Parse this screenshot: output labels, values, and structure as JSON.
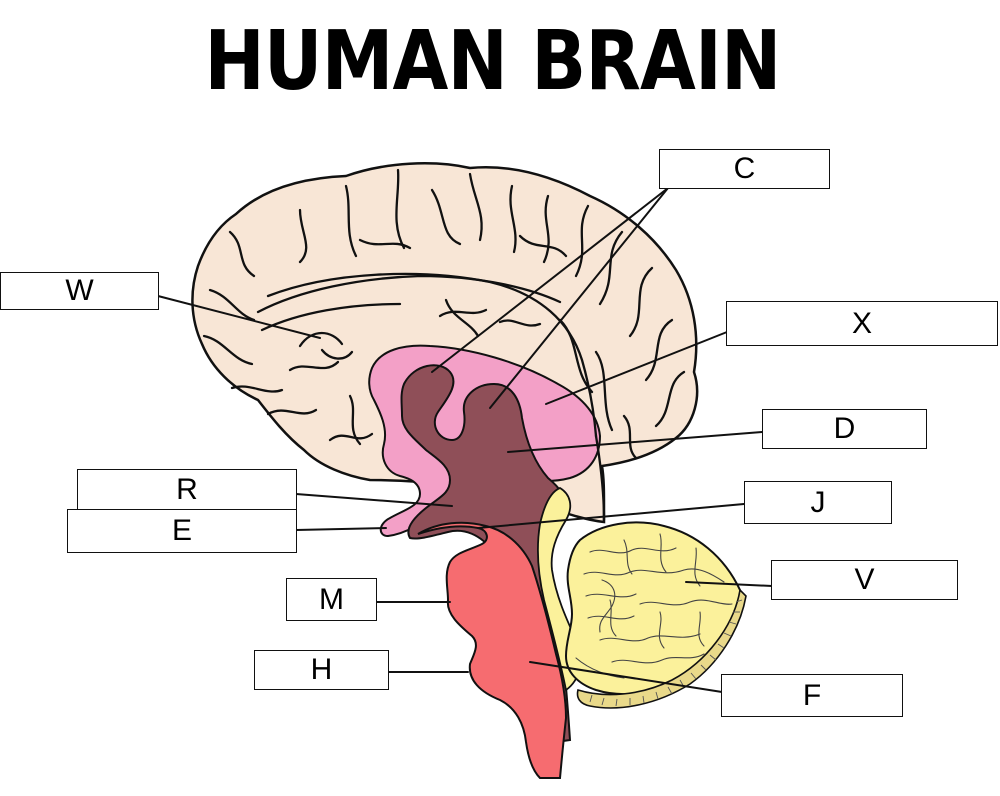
{
  "title": "HUMAN BRAIN",
  "labels": {
    "c": "C",
    "w": "W",
    "x": "X",
    "d": "D",
    "r": "R",
    "e": "E",
    "j": "J",
    "v": "V",
    "m": "M",
    "h": "H",
    "f": "F"
  },
  "colors": {
    "cerebrum": "#f8e6d6",
    "limbic": "#f3a0c7",
    "diencephalon": "#8f4f58",
    "brainstem": "#f66c70",
    "cerebellum": "#fbf19b",
    "outline": "#111111"
  }
}
